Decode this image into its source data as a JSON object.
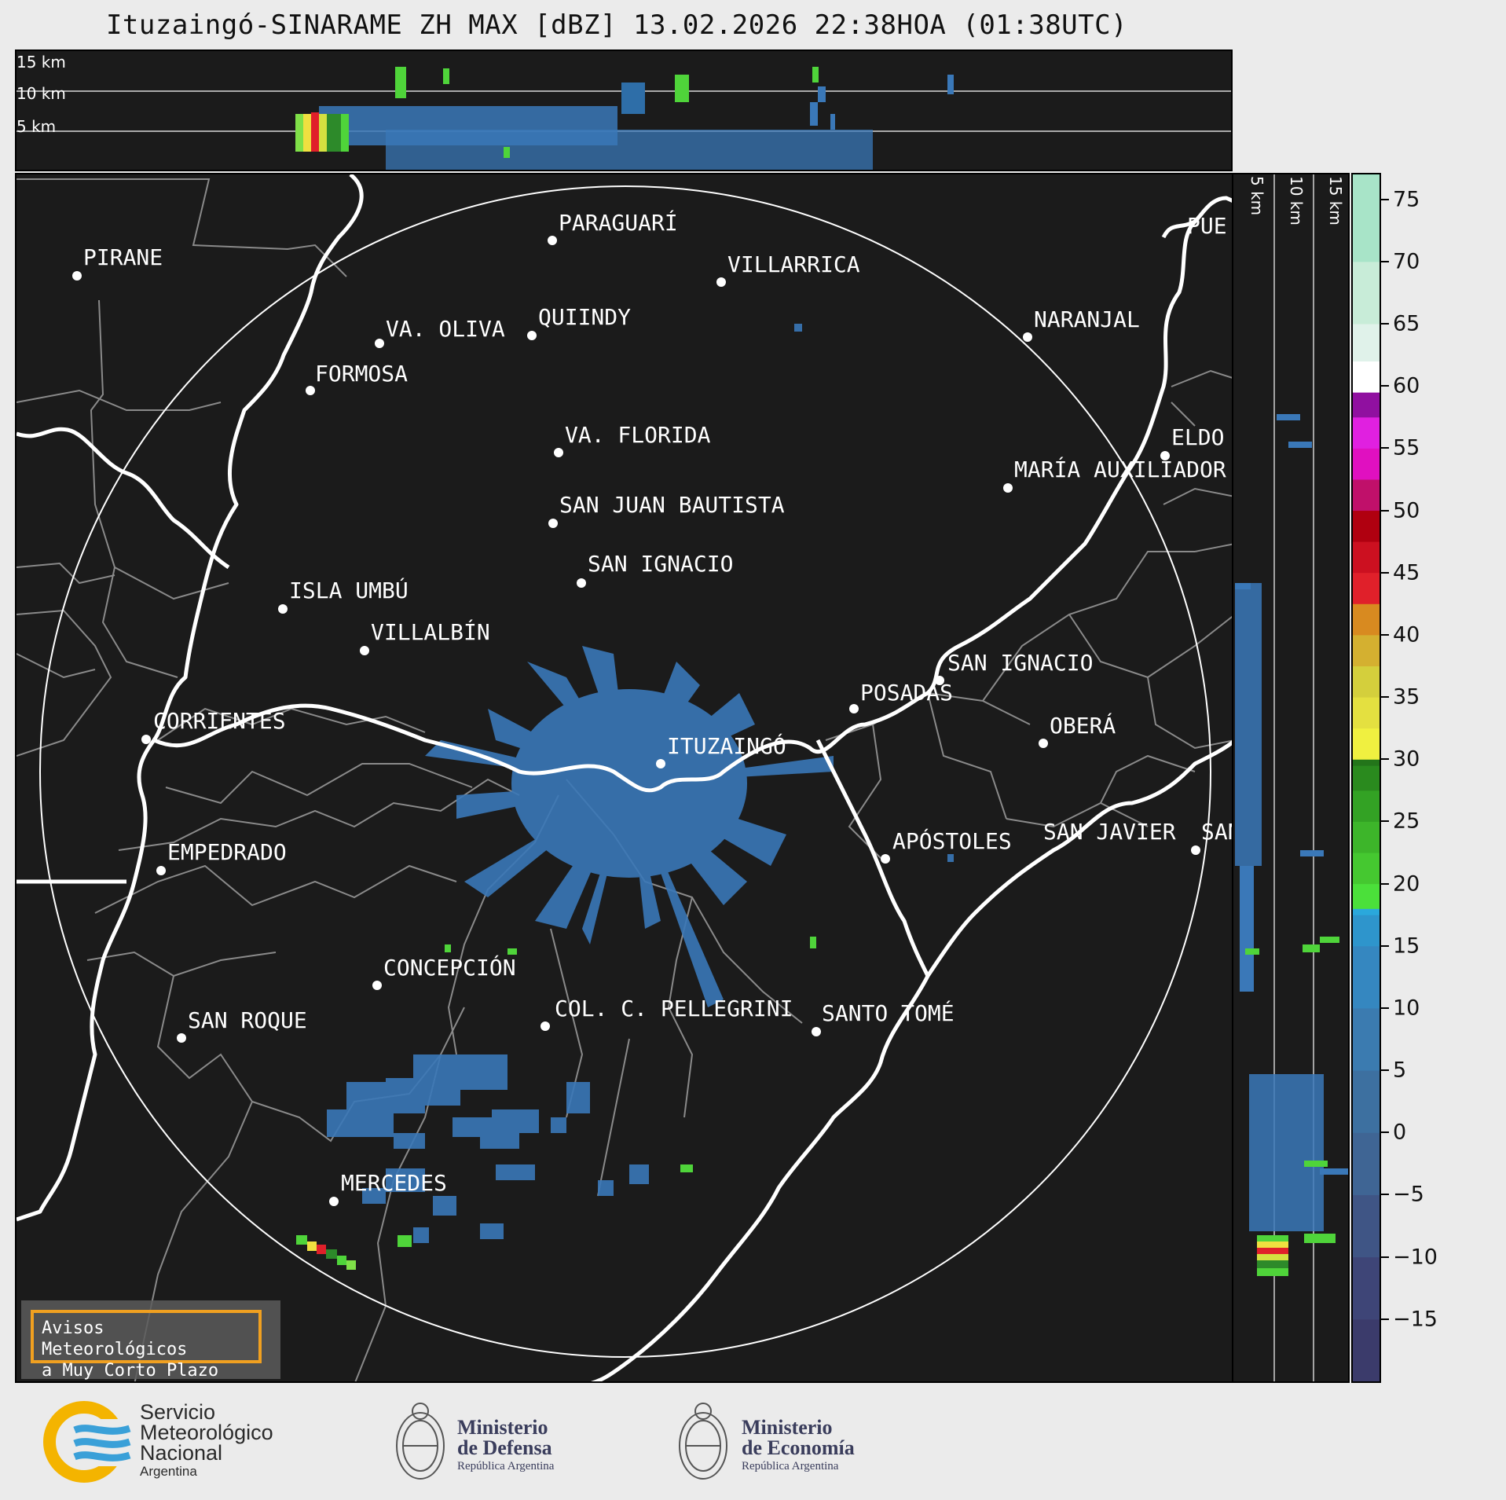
{
  "title": "Ituzaingó-SINARAME ZH MAX [dBZ] 13.02.2026 22:38HOA (01:38UTC)",
  "height_labels": [
    "15 km",
    "10 km",
    "5 km"
  ],
  "colorbar": {
    "ticks": [
      75,
      70,
      65,
      60,
      55,
      50,
      45,
      40,
      35,
      30,
      25,
      20,
      15,
      10,
      5,
      0,
      -5,
      -10,
      -15
    ],
    "tick_labels": [
      "75",
      "70",
      "65",
      "60",
      "55",
      "50",
      "45",
      "40",
      "35",
      "30",
      "25",
      "20",
      "15",
      "10",
      "5",
      "0",
      "−5",
      "−10",
      "−15"
    ],
    "range": [
      -20,
      77
    ]
  },
  "cities": [
    {
      "name": "PIRANE"
    },
    {
      "name": "PARAGUARÍ"
    },
    {
      "name": "VILLARRICA"
    },
    {
      "name": "PUE"
    },
    {
      "name": "QUIINDY"
    },
    {
      "name": "VA. OLIVA"
    },
    {
      "name": "NARANJAL"
    },
    {
      "name": "FORMOSA"
    },
    {
      "name": "VA. FLORIDA"
    },
    {
      "name": "ELDO"
    },
    {
      "name": "MARÍA AUXILIADOR"
    },
    {
      "name": "SAN JUAN BAUTISTA"
    },
    {
      "name": "SAN IGNACIO"
    },
    {
      "name": "ISLA UMBÚ"
    },
    {
      "name": "VILLALBÍN"
    },
    {
      "name": "SAN IGNACIO"
    },
    {
      "name": "POSADAS"
    },
    {
      "name": "CORRIENTES"
    },
    {
      "name": "ITUZAINGÓ"
    },
    {
      "name": "OBERÁ"
    },
    {
      "name": "APÓSTOLES"
    },
    {
      "name": "SAN JAVIER"
    },
    {
      "name": "SAN"
    },
    {
      "name": "EMPEDRADO"
    },
    {
      "name": "CONCEPCIÓN"
    },
    {
      "name": "COL. C. PELLEGRINI"
    },
    {
      "name": "SANTO TOMÉ"
    },
    {
      "name": "SAN ROQUE"
    },
    {
      "name": "MERCEDES"
    }
  ],
  "alert": {
    "line1": "Avisos Meteorológicos",
    "line2": "a Muy Corto Plazo"
  },
  "footer": {
    "smn": {
      "line1": "Servicio",
      "line2": "Meteorológico",
      "line3": "Nacional",
      "line4": "Argentina"
    },
    "defensa": {
      "line1": "Ministerio",
      "line2": "de Defensa",
      "line3": "República Argentina"
    },
    "economia": {
      "line1": "Ministerio",
      "line2": "de Economía",
      "line3": "República Argentina"
    }
  },
  "colors": {
    "background": "#1b1b1b",
    "border_white": "#ffffff",
    "province_lines": "#8a8a8a",
    "echo_blue": "#3a78b8",
    "alert_border": "#f0a020"
  }
}
